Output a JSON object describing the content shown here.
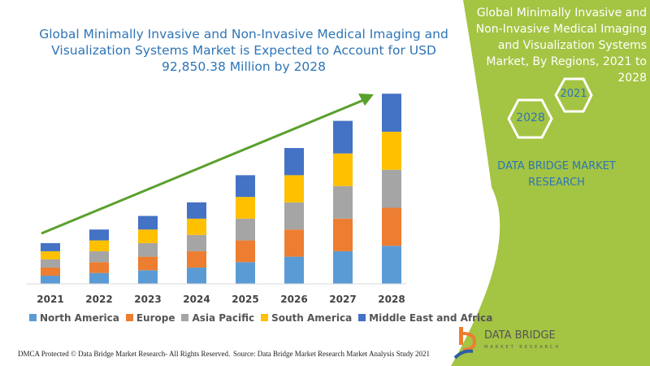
{
  "chart_data": {
    "type": "bar",
    "stacked": true,
    "title": "Global Minimally Invasive and Non-Invasive Medical Imaging and Visualization Systems Market is Expected to Account for USD 92,850.38 Million by 2028",
    "categories": [
      "2021",
      "2022",
      "2023",
      "2024",
      "2025",
      "2026",
      "2027",
      "2028"
    ],
    "series": [
      {
        "name": "North America",
        "color": "#5b9bd5",
        "values": [
          0.3,
          0.4,
          0.5,
          0.6,
          0.8,
          1.0,
          1.2,
          1.4
        ]
      },
      {
        "name": "Europe",
        "color": "#ed7d31",
        "values": [
          0.3,
          0.4,
          0.5,
          0.6,
          0.8,
          1.0,
          1.2,
          1.4
        ]
      },
      {
        "name": "Asia Pacific",
        "color": "#a5a5a5",
        "values": [
          0.3,
          0.4,
          0.5,
          0.6,
          0.8,
          1.0,
          1.2,
          1.4
        ]
      },
      {
        "name": "South America",
        "color": "#ffc000",
        "values": [
          0.3,
          0.4,
          0.5,
          0.6,
          0.8,
          1.0,
          1.2,
          1.4
        ]
      },
      {
        "name": "Middle East and Africa",
        "color": "#4472c4",
        "values": [
          0.3,
          0.4,
          0.5,
          0.6,
          0.8,
          1.0,
          1.2,
          1.4
        ]
      }
    ],
    "legend": "bottom",
    "grid": false,
    "trend_arrow_color": "#5aa02c"
  },
  "side": {
    "title": "Global Minimally Invasive and Non-Invasive Medical Imaging and Visualization Systems Market, By Regions, 2021 to 2028",
    "hex1": "2021",
    "hex2": "2028",
    "brand": "DATA BRIDGE MARKET RESEARCH",
    "panel_color": "#a4c443"
  },
  "logo": {
    "name": "DATA BRIDGE",
    "sub": "MARKET RESEARCH"
  },
  "footer": {
    "left": "DMCA Protected © Data Bridge Market Research- All Rights Reserved.",
    "right": "Source: Data Bridge Market Research Market Analysis Study 2021"
  }
}
